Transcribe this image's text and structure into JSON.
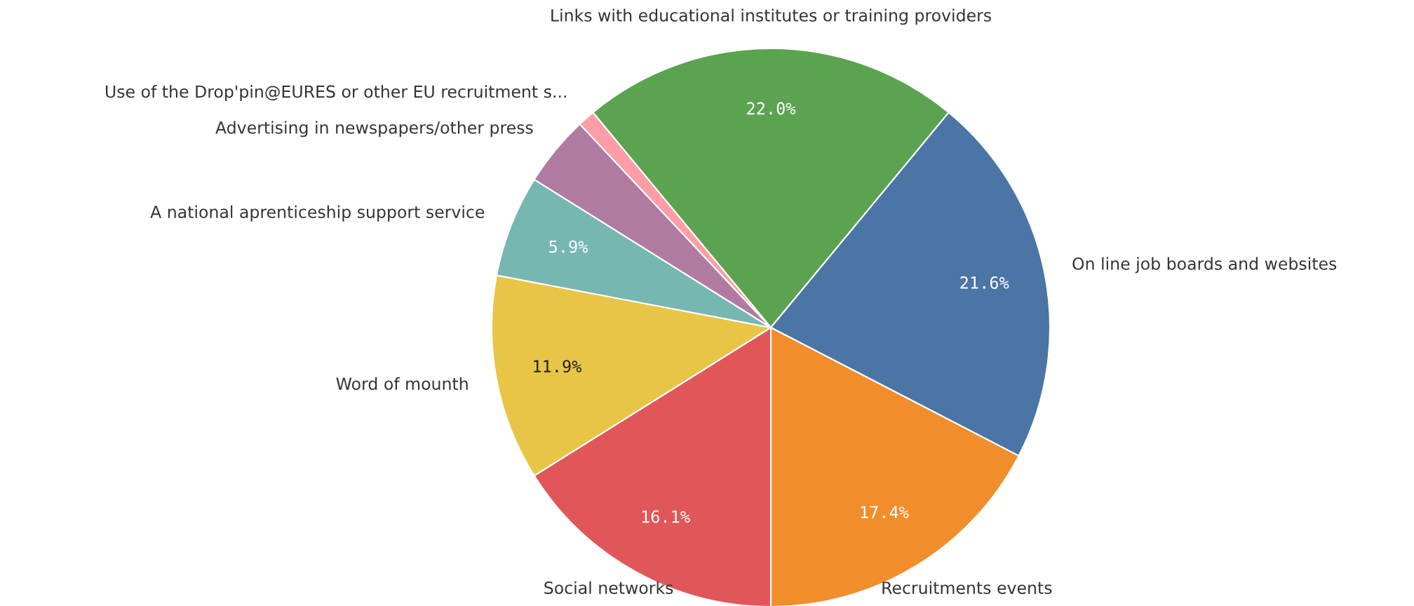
{
  "chart_data": {
    "type": "pie",
    "categories": [
      "Links with educational institutes or training providers",
      "On line job boards and websites",
      "Recruitments events",
      "Social networks",
      "Word of mounth",
      "A national aprenticeship support service",
      "Advertising in newspapers/other press",
      "Use of the Drop'pin@EURES or other EU recruitment s..."
    ],
    "values": [
      22.0,
      21.6,
      17.4,
      16.1,
      11.9,
      5.9,
      4.1,
      1.0
    ],
    "value_labels": [
      "22.0%",
      "21.6%",
      "17.4%",
      "16.1%",
      "11.9%",
      "5.9%",
      null,
      null
    ],
    "colors": [
      "#5ba350",
      "#4a75a5",
      "#f28d2b",
      "#e15759",
      "#e8c547",
      "#76b7b2",
      "#b07aa1",
      "#ff9da7"
    ],
    "legend": false
  }
}
